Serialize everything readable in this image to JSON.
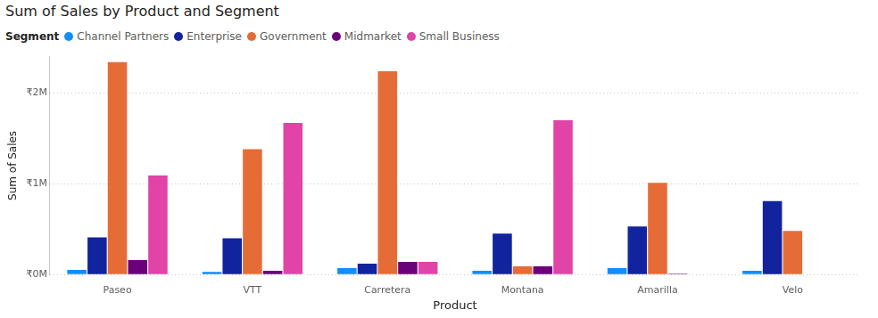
{
  "chart_data": {
    "type": "bar",
    "title": "Sum of Sales by Product and Segment",
    "legend_title": "Segment",
    "x_label": "Product",
    "y_label": "Sum of Sales",
    "categories": [
      "Paseo",
      "VTT",
      "Carretera",
      "Montana",
      "Amarilla",
      "Velo"
    ],
    "series": [
      {
        "name": "Channel Partners",
        "color": "#118DFF",
        "values": [
          50000,
          30000,
          70000,
          40000,
          70000,
          40000
        ]
      },
      {
        "name": "Enterprise",
        "color": "#12239E",
        "values": [
          410000,
          400000,
          120000,
          450000,
          530000,
          810000
        ]
      },
      {
        "name": "Government",
        "color": "#E66C37",
        "values": [
          2340000,
          1380000,
          2240000,
          90000,
          1010000,
          480000
        ]
      },
      {
        "name": "Midmarket",
        "color": "#6B007B",
        "values": [
          160000,
          40000,
          140000,
          90000,
          10000,
          null
        ]
      },
      {
        "name": "Small Business",
        "color": "#E044A7",
        "values": [
          1090000,
          1670000,
          140000,
          1700000,
          null,
          null
        ]
      }
    ],
    "ylim": [
      0,
      2400000
    ],
    "yticks": [
      {
        "value": 0,
        "label": "₹0M"
      },
      {
        "value": 1000000,
        "label": "₹1M"
      },
      {
        "value": 2000000,
        "label": "₹2M"
      }
    ],
    "grid": true,
    "legend": "top-left"
  }
}
